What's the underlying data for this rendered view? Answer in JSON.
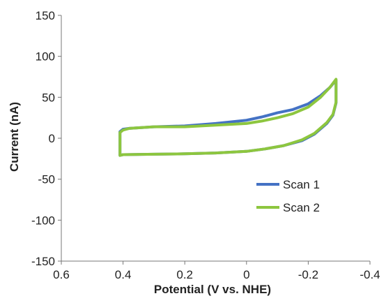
{
  "chart_data": {
    "type": "line",
    "title": "",
    "xlabel": "Potential (V vs. NHE)",
    "ylabel": "Current (nA)",
    "xlim": [
      0.6,
      -0.4
    ],
    "ylim": [
      -150,
      150
    ],
    "x_ticks": [
      "0.6",
      "0.4",
      "0.2",
      "0",
      "-0.2",
      "-0.4"
    ],
    "y_ticks": [
      "150",
      "100",
      "50",
      "0",
      "-50",
      "-100",
      "-150"
    ],
    "x_tick_values": [
      0.6,
      0.4,
      0.2,
      0,
      -0.2,
      -0.4
    ],
    "y_tick_values": [
      150,
      100,
      50,
      0,
      -50,
      -100,
      -150
    ],
    "legend_position": "lower-right",
    "grid": false,
    "series": [
      {
        "name": "Scan 1",
        "color": "#4472C4",
        "x": [
          0.41,
          0.4,
          0.38,
          0.3,
          0.2,
          0.1,
          0.0,
          -0.05,
          -0.1,
          -0.15,
          -0.2,
          -0.24,
          -0.27,
          -0.29,
          -0.29,
          -0.28,
          -0.26,
          -0.22,
          -0.18,
          -0.12,
          -0.06,
          0.0,
          0.1,
          0.2,
          0.3,
          0.4,
          0.41,
          0.41
        ],
        "y": [
          8,
          11,
          12,
          14,
          15,
          18,
          22,
          26,
          31,
          35,
          42,
          52,
          62,
          71,
          43,
          28,
          18,
          5,
          -3,
          -9,
          -13,
          -16,
          -18,
          -19,
          -19.5,
          -20,
          -21,
          8
        ]
      },
      {
        "name": "Scan 2",
        "color": "#8DC63F",
        "x": [
          0.41,
          0.4,
          0.38,
          0.3,
          0.2,
          0.1,
          0.0,
          -0.05,
          -0.1,
          -0.15,
          -0.2,
          -0.24,
          -0.27,
          -0.29,
          -0.29,
          -0.28,
          -0.26,
          -0.22,
          -0.18,
          -0.12,
          -0.06,
          0.0,
          0.1,
          0.2,
          0.3,
          0.4,
          0.41,
          0.41
        ],
        "y": [
          7,
          10,
          12,
          14,
          14,
          16,
          18,
          21,
          25,
          30,
          38,
          50,
          62,
          72,
          44,
          29,
          19,
          6,
          -2,
          -9,
          -13,
          -16,
          -18,
          -19,
          -19.5,
          -20,
          -21,
          7
        ]
      }
    ]
  }
}
